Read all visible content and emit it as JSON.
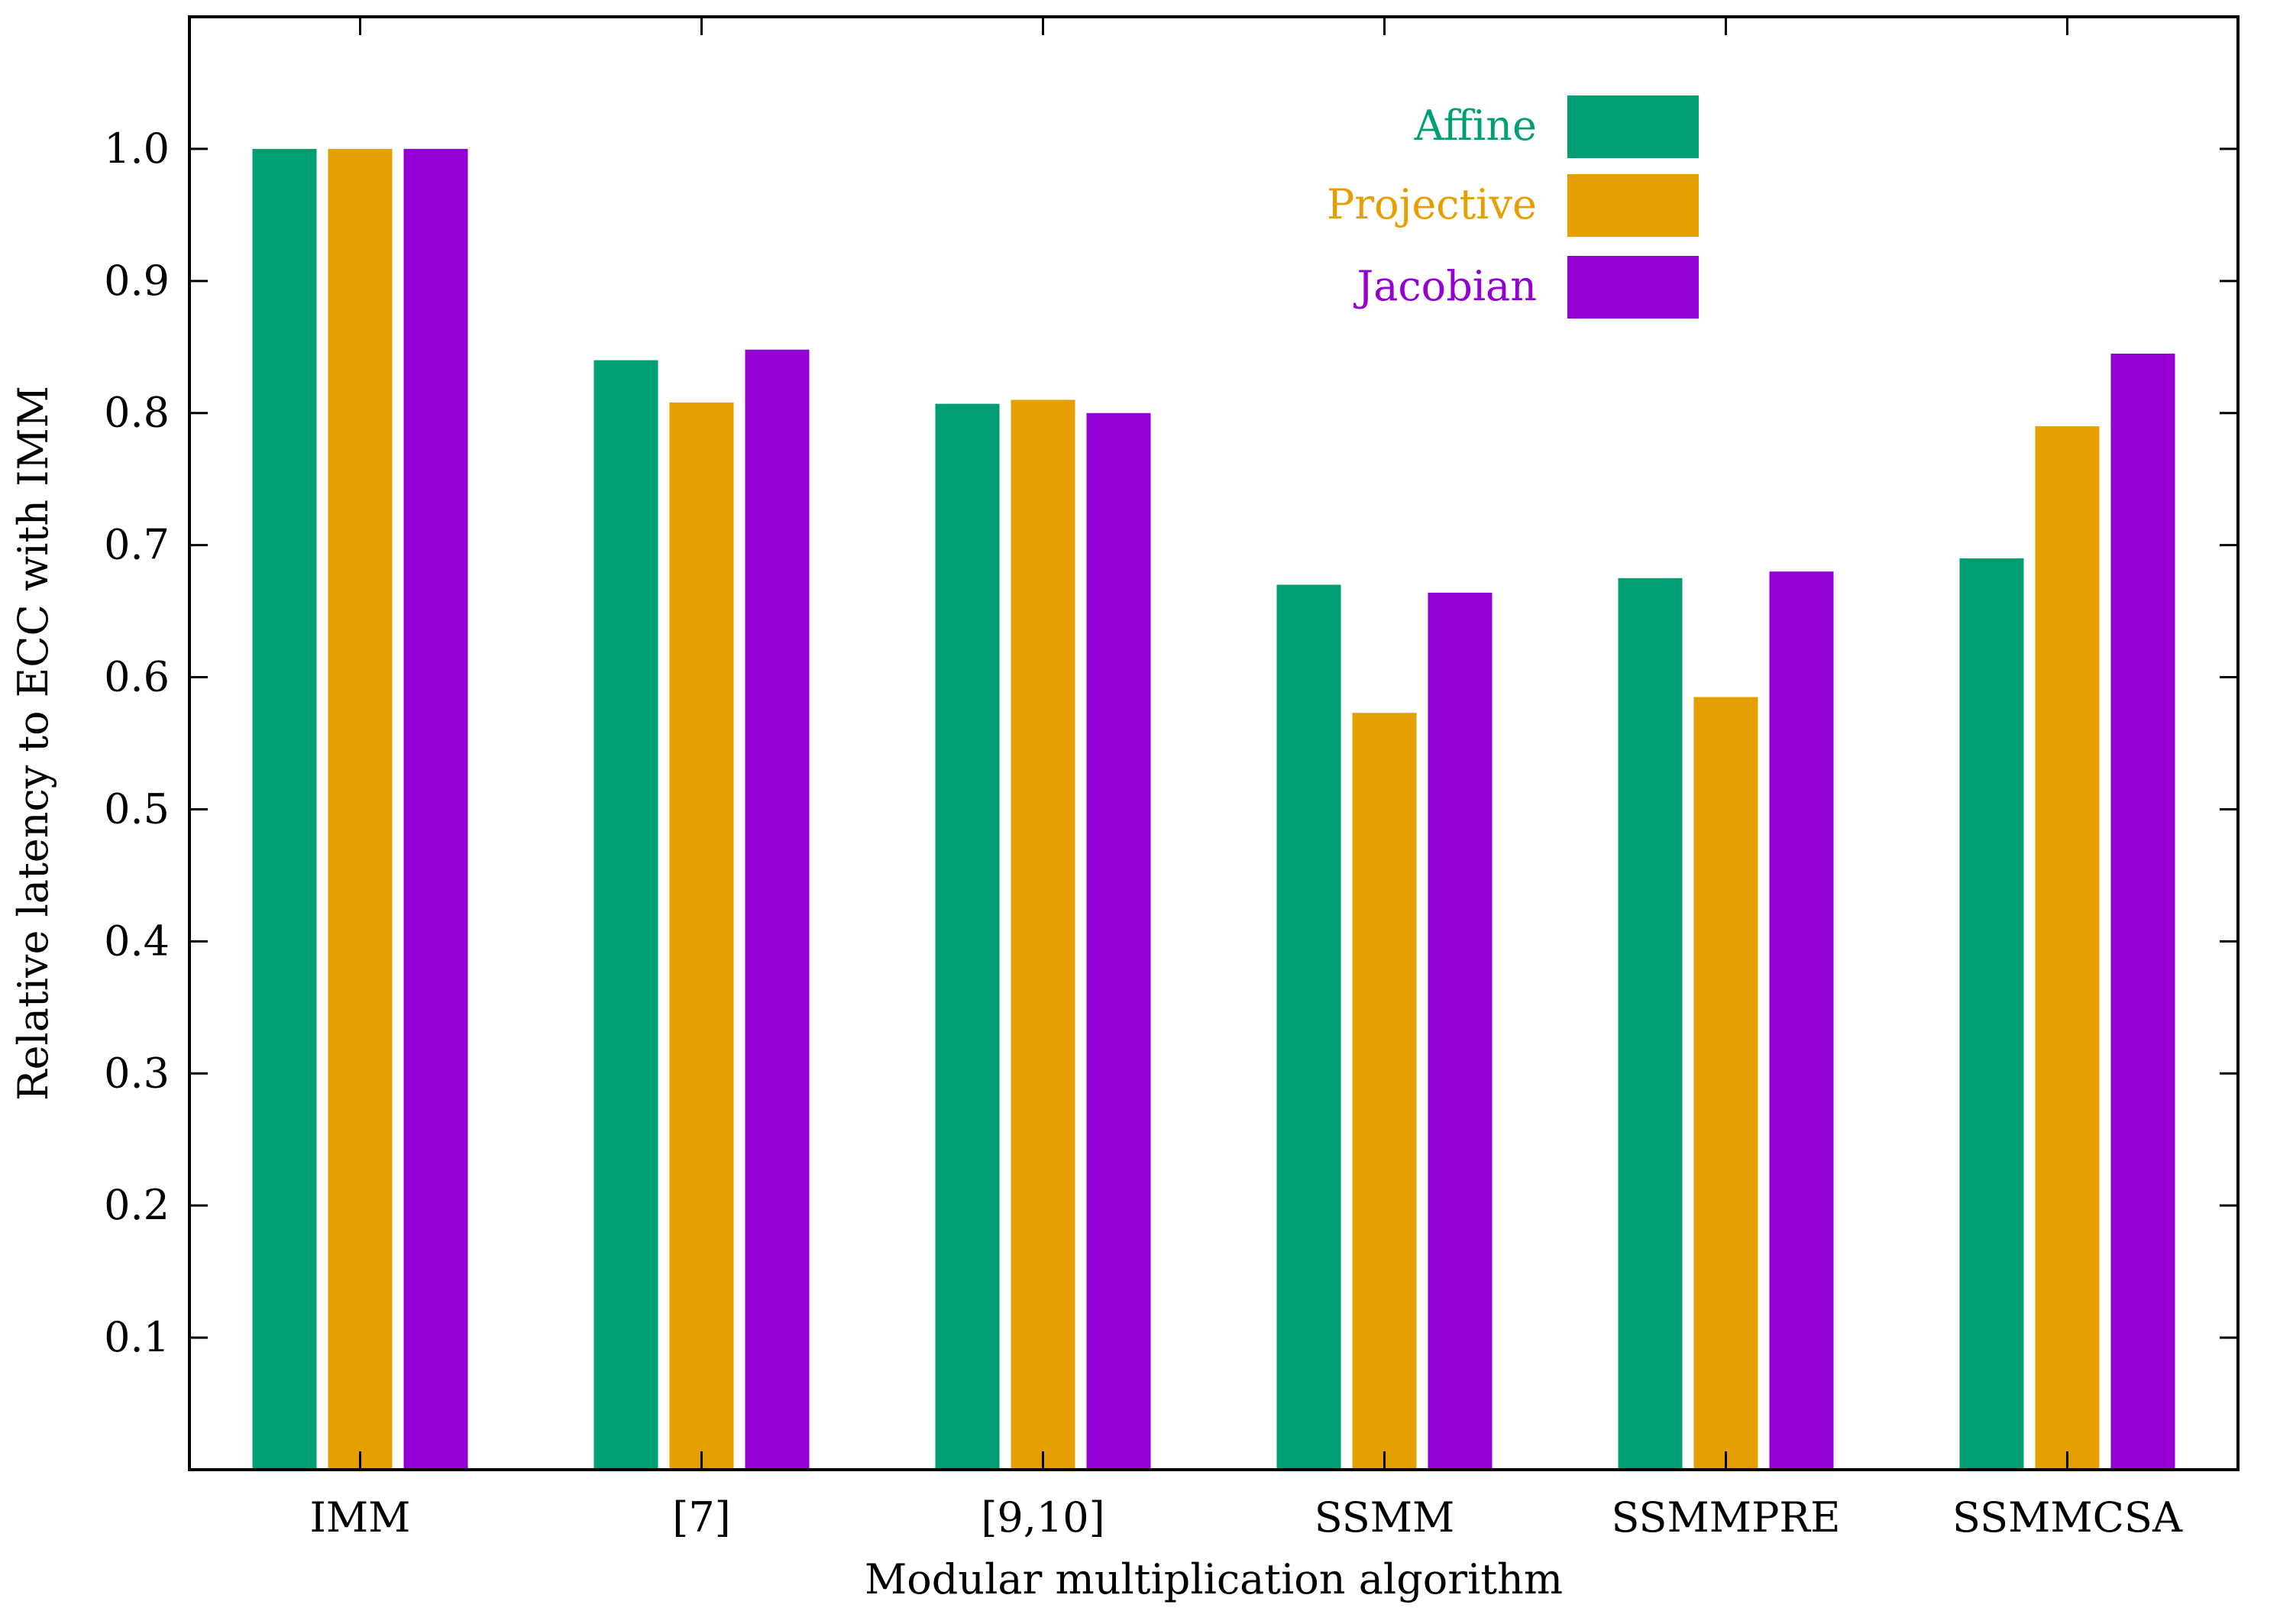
{
  "chart_data": {
    "type": "bar",
    "title": "",
    "xlabel": "Modular multiplication algorithm",
    "ylabel": "Relative latency to ECC with IMM",
    "categories": [
      "IMM",
      "[7]",
      "[9,10]",
      "SSMM",
      "SSMMPRE",
      "SSMMCSA"
    ],
    "series": [
      {
        "name": "Affine",
        "color": "#009e73",
        "values": [
          1.0,
          0.84,
          0.807,
          0.67,
          0.675,
          0.69
        ]
      },
      {
        "name": "Projective",
        "color": "#e69f00",
        "values": [
          1.0,
          0.808,
          0.81,
          0.573,
          0.585,
          0.79
        ]
      },
      {
        "name": "Jacobian",
        "color": "#9400d3",
        "values": [
          1.0,
          0.848,
          0.8,
          0.664,
          0.68,
          0.845
        ]
      }
    ],
    "ylim": [
      0,
      1.1
    ],
    "yticks": [
      "0.1",
      "0.2",
      "0.3",
      "0.4",
      "0.5",
      "0.6",
      "0.7",
      "0.8",
      "0.9",
      "1.0"
    ],
    "grid": false,
    "legend_position": "top-right"
  }
}
